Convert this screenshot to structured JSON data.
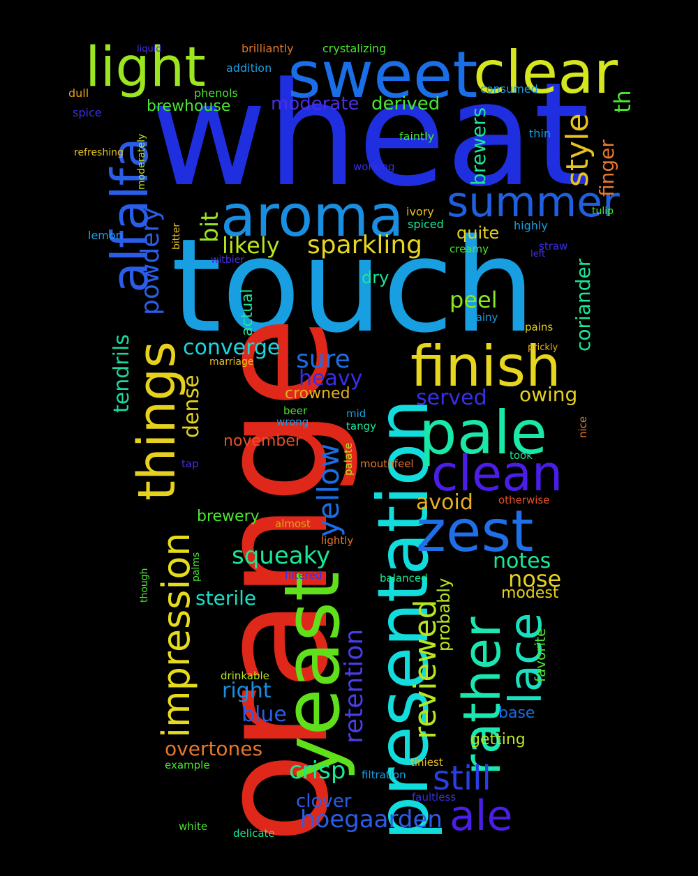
{
  "cloud": {
    "words": [
      {
        "text": "wheat",
        "color": "#1f2fe0"
      },
      {
        "text": "touch",
        "color": "#189fe2"
      },
      {
        "text": "orange",
        "color": "#e0281a"
      },
      {
        "text": "presentation",
        "color": "#12dcdc"
      },
      {
        "text": "yeast",
        "color": "#5fe01a"
      },
      {
        "text": "sweet",
        "color": "#1a6fe8"
      },
      {
        "text": "clear",
        "color": "#d6e61e"
      },
      {
        "text": "light",
        "color": "#9be621"
      },
      {
        "text": "aroma",
        "color": "#1a8ee0"
      },
      {
        "text": "finish",
        "color": "#e6d71e"
      },
      {
        "text": "pale",
        "color": "#1ae8a8"
      },
      {
        "text": "things",
        "color": "#e6d21e"
      },
      {
        "text": "alfalfa",
        "color": "#2a5ee8"
      },
      {
        "text": "summer",
        "color": "#1f5fe0"
      },
      {
        "text": "clean",
        "color": "#4a1ee6"
      },
      {
        "text": "zest",
        "color": "#1f6fe8"
      },
      {
        "text": "rather",
        "color": "#1ae8b0"
      },
      {
        "text": "lace",
        "color": "#1ae0c0"
      },
      {
        "text": "impression",
        "color": "#e6dc1e"
      },
      {
        "text": "ale",
        "color": "#4a1ee6"
      },
      {
        "text": "style",
        "color": "#e6c21e"
      },
      {
        "text": "yellow",
        "color": "#1a6fe8"
      },
      {
        "text": "powdery",
        "color": "#2a5ee8"
      },
      {
        "text": "sparkling",
        "color": "#e6d81e"
      },
      {
        "text": "reviewed",
        "color": "#b8e61e"
      },
      {
        "text": "still",
        "color": "#2a3ee8"
      },
      {
        "text": "crisp",
        "color": "#1ae898"
      },
      {
        "text": "hoegaarden",
        "color": "#2a5ee8"
      },
      {
        "text": "squeaky",
        "color": "#1ae898"
      },
      {
        "text": "tendrils",
        "color": "#1ad8a0"
      },
      {
        "text": "retention",
        "color": "#4a3ee8"
      },
      {
        "text": "likely",
        "color": "#b8e61e"
      },
      {
        "text": "converge",
        "color": "#1ad8e0"
      },
      {
        "text": "sure",
        "color": "#1a6fe8"
      },
      {
        "text": "heavy",
        "color": "#3a2ee8"
      },
      {
        "text": "peel",
        "color": "#8ae61e"
      },
      {
        "text": "brewers",
        "color": "#1ae898"
      },
      {
        "text": "coriander",
        "color": "#1ae898"
      },
      {
        "text": "finger",
        "color": "#e6782a"
      },
      {
        "text": "th",
        "color": "#4ae62e"
      },
      {
        "text": "bit",
        "color": "#9be621"
      },
      {
        "text": "dense",
        "color": "#e6d21e"
      },
      {
        "text": "served",
        "color": "#3a2ee8"
      },
      {
        "text": "owing",
        "color": "#e6d21e"
      },
      {
        "text": "avoid",
        "color": "#e6b01e"
      },
      {
        "text": "notes",
        "color": "#1ae898"
      },
      {
        "text": "nose",
        "color": "#e6d21e"
      },
      {
        "text": "sterile",
        "color": "#1ae0c8"
      },
      {
        "text": "right",
        "color": "#1a8ee0"
      },
      {
        "text": "blue",
        "color": "#2a5ee8"
      },
      {
        "text": "overtones",
        "color": "#e6782a"
      },
      {
        "text": "clover",
        "color": "#2a5ee8"
      },
      {
        "text": "probably",
        "color": "#b8e61e"
      },
      {
        "text": "modest",
        "color": "#e6d21e"
      },
      {
        "text": "moderate",
        "color": "#4a2ee8"
      },
      {
        "text": "derived",
        "color": "#4ae62e"
      },
      {
        "text": "brewhouse",
        "color": "#4ae62e"
      },
      {
        "text": "quite",
        "color": "#e6d21e"
      },
      {
        "text": "dry",
        "color": "#1ae898"
      },
      {
        "text": "brewery",
        "color": "#4ae62e"
      },
      {
        "text": "crowned",
        "color": "#e6b01e"
      },
      {
        "text": "actual",
        "color": "#1ae898"
      },
      {
        "text": "november",
        "color": "#e6502a"
      },
      {
        "text": "getting",
        "color": "#b8e61e"
      },
      {
        "text": "base",
        "color": "#1a6fe8"
      },
      {
        "text": "favorite",
        "color": "#4ae62e"
      },
      {
        "text": "addition",
        "color": "#189fe2"
      },
      {
        "text": "brilliantly",
        "color": "#e6782a"
      },
      {
        "text": "crystalizing",
        "color": "#4ae62e"
      },
      {
        "text": "liquid",
        "color": "#4a2ee8"
      },
      {
        "text": "phenols",
        "color": "#4ae62e"
      },
      {
        "text": "consumed",
        "color": "#189fe2"
      },
      {
        "text": "dull",
        "color": "#e6a01e"
      },
      {
        "text": "spice",
        "color": "#3a2ee8"
      },
      {
        "text": "refreshing",
        "color": "#e6c21e"
      },
      {
        "text": "moderately",
        "color": "#b8e61e"
      },
      {
        "text": "faintly",
        "color": "#4ae62e"
      },
      {
        "text": "thin",
        "color": "#189fe2"
      },
      {
        "text": "working",
        "color": "#3a2ee8"
      },
      {
        "text": "ivory",
        "color": "#e6c21e"
      },
      {
        "text": "spiced",
        "color": "#1ae898"
      },
      {
        "text": "highly",
        "color": "#189fe2"
      },
      {
        "text": "tulip",
        "color": "#4ae62e"
      },
      {
        "text": "lemon",
        "color": "#189fe2"
      },
      {
        "text": "bitter",
        "color": "#e6c21e"
      },
      {
        "text": "witbier",
        "color": "#4a2ee8"
      },
      {
        "text": "creamy",
        "color": "#4ae62e"
      },
      {
        "text": "straw",
        "color": "#3a2ee8"
      },
      {
        "text": "left",
        "color": "#4a2ee8"
      },
      {
        "text": "grainy",
        "color": "#189fe2"
      },
      {
        "text": "pains",
        "color": "#e6d21e"
      },
      {
        "text": "prickly",
        "color": "#e6b01e"
      },
      {
        "text": "marriage",
        "color": "#e6c21e"
      },
      {
        "text": "beer",
        "color": "#4ae62e"
      },
      {
        "text": "mid",
        "color": "#189fe2"
      },
      {
        "text": "wrong",
        "color": "#189fe2"
      },
      {
        "text": "tangy",
        "color": "#1ae898"
      },
      {
        "text": "nice",
        "color": "#e6782a"
      },
      {
        "text": "palate",
        "color": "#b8e61e"
      },
      {
        "text": "tap",
        "color": "#4a2ee8"
      },
      {
        "text": "took",
        "color": "#1ae898"
      },
      {
        "text": "mouthfeel",
        "color": "#e6782a"
      },
      {
        "text": "otherwise",
        "color": "#e6502a"
      },
      {
        "text": "almost",
        "color": "#e6a01e"
      },
      {
        "text": "lightly",
        "color": "#e6782a"
      },
      {
        "text": "palms",
        "color": "#4ae62e"
      },
      {
        "text": "though",
        "color": "#4ae62e"
      },
      {
        "text": "filtered",
        "color": "#3a2ee8"
      },
      {
        "text": "balanced",
        "color": "#1ae898"
      },
      {
        "text": "drinkable",
        "color": "#b8e61e"
      },
      {
        "text": "tiniest",
        "color": "#e6c21e"
      },
      {
        "text": "example",
        "color": "#4ae62e"
      },
      {
        "text": "filtration",
        "color": "#189fe2"
      },
      {
        "text": "faultless",
        "color": "#3a2ee8"
      },
      {
        "text": "white",
        "color": "#4ae62e"
      },
      {
        "text": "delicate",
        "color": "#1ae898"
      }
    ]
  }
}
